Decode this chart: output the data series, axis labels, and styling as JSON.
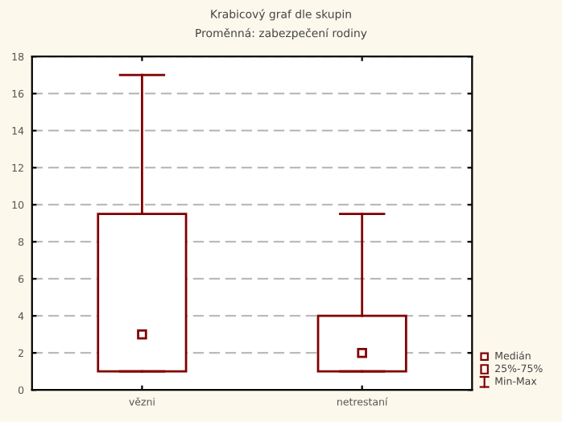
{
  "chart_data": {
    "type": "box",
    "title": "Krabicový graf dle skupin",
    "subtitle": "Proměnná: zabezpečení rodiny",
    "categories": [
      "vězni",
      "netrestaní"
    ],
    "boxes": [
      {
        "low": 1,
        "q1": 1,
        "median": 3,
        "q3": 9.5,
        "high": 17
      },
      {
        "low": 1,
        "q1": 1,
        "median": 2,
        "q3": 4,
        "high": 9.5
      }
    ],
    "color": "#800000",
    "ylim": [
      0,
      18
    ],
    "yticks": [
      0,
      2,
      4,
      6,
      8,
      10,
      12,
      14,
      16,
      18
    ],
    "grid": "y",
    "annotations": [
      "Medián",
      "25%-75%",
      "Min-Max"
    ]
  }
}
